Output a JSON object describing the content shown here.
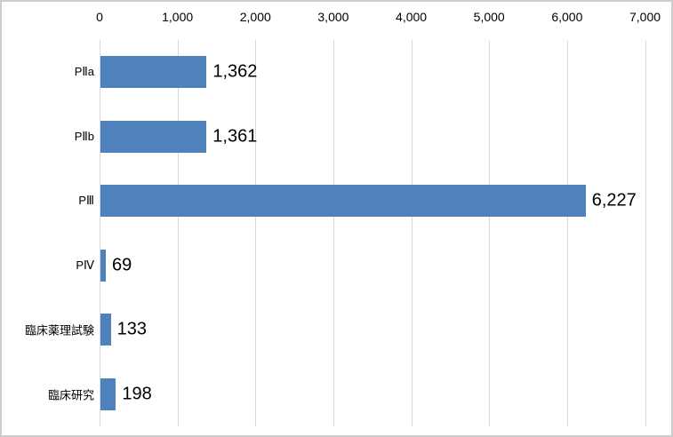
{
  "chart_data": {
    "type": "bar",
    "orientation": "horizontal",
    "title": "",
    "categories": [
      "PⅡa",
      "PⅡb",
      "PⅢ",
      "PⅣ",
      "臨床薬理試験",
      "臨床研究"
    ],
    "values": [
      1362,
      1361,
      6227,
      69,
      133,
      198
    ],
    "value_labels": [
      "1,362",
      "1,361",
      "6,227",
      "69",
      "133",
      "198"
    ],
    "x_axis": {
      "position": "top",
      "range": [
        0,
        7000
      ],
      "ticks": [
        0,
        1000,
        2000,
        3000,
        4000,
        5000,
        6000,
        7000
      ],
      "tick_labels": [
        "0",
        "1,000",
        "2,000",
        "3,000",
        "4,000",
        "5,000",
        "6,000",
        "7,000"
      ]
    },
    "y_axis": {
      "position": "left"
    },
    "grid": true,
    "legend": false,
    "colors": {
      "bar": "#4F81BD",
      "gridline": "#D9D9D9",
      "text": "#000000",
      "background": "#FFFFFF",
      "border": "#CDCDCD"
    }
  }
}
